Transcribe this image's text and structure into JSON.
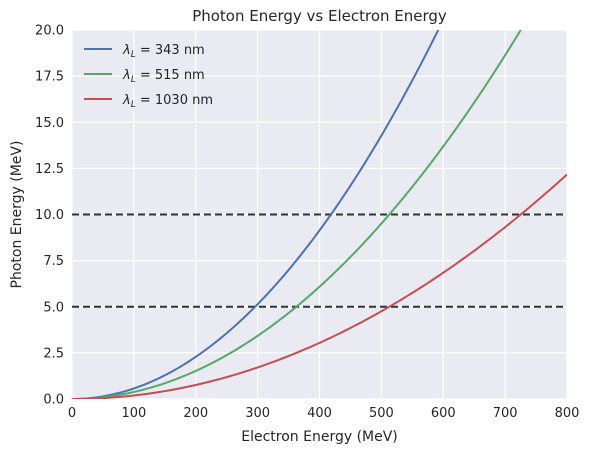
{
  "chart_data": {
    "type": "line",
    "title": "Photon Energy vs Electron Energy",
    "xlabel": "Electron Energy (MeV)",
    "ylabel": "Photon Energy (MeV)",
    "xlim": [
      0,
      800
    ],
    "ylim": [
      0,
      20
    ],
    "xticks": [
      0,
      100,
      200,
      300,
      400,
      500,
      600,
      700,
      800
    ],
    "xtick_labels": [
      "0",
      "100",
      "200",
      "300",
      "400",
      "500",
      "600",
      "700",
      "800"
    ],
    "yticks": [
      0,
      2.5,
      5,
      7.5,
      10,
      12.5,
      15,
      17.5,
      20
    ],
    "ytick_labels": [
      "0.0",
      "2.5",
      "5.0",
      "7.5",
      "10.0",
      "12.5",
      "15.0",
      "17.5",
      "20.0"
    ],
    "grid": true,
    "legend_position": "top-left",
    "background_color": "#eaeaf2",
    "x": [
      0,
      50,
      100,
      150,
      200,
      250,
      300,
      350,
      400,
      450,
      500,
      550,
      600,
      650,
      700,
      750,
      800
    ],
    "series": [
      {
        "name": "343 nm",
        "color": "#4c72b0",
        "values": [
          0,
          0.143,
          0.571,
          1.285,
          2.284,
          3.569,
          5.139,
          6.995,
          9.136,
          11.563,
          14.275,
          17.273,
          20.555,
          null,
          null,
          null,
          null
        ]
      },
      {
        "name": "515 nm",
        "color": "#55a868",
        "values": [
          0,
          0.095,
          0.38,
          0.856,
          1.521,
          2.377,
          3.423,
          4.659,
          6.085,
          7.701,
          9.508,
          11.504,
          13.69,
          16.067,
          18.634,
          21.39,
          null
        ]
      },
      {
        "name": "1030 nm",
        "color": "#c44e52",
        "values": [
          0,
          0.048,
          0.19,
          0.428,
          0.761,
          1.189,
          1.711,
          2.329,
          3.042,
          3.851,
          4.754,
          5.752,
          6.845,
          8.033,
          9.317,
          10.695,
          12.169
        ]
      }
    ],
    "hlines": [
      {
        "y": 5.0,
        "style": "dashed",
        "color": "#333333"
      },
      {
        "y": 10.0,
        "style": "dashed",
        "color": "#333333"
      }
    ],
    "legend_prefix": "λ",
    "legend_subscript": "L",
    "legend_equals": " = "
  }
}
